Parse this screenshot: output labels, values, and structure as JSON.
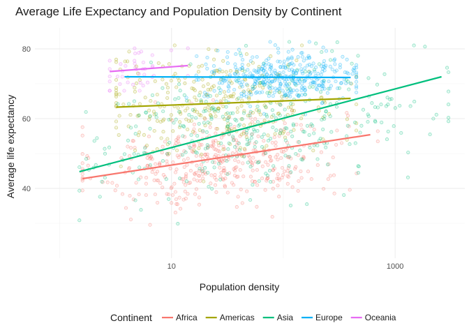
{
  "chart_data": {
    "type": "scatter",
    "title": "Average Life Expectancy and Population Density by Continent",
    "xlabel": "Population density",
    "ylabel": "Average life expectancy",
    "x_scale": "log10",
    "xlim": [
      0.6,
      4200
    ],
    "ylim": [
      20,
      86
    ],
    "x_ticks": [
      10,
      1000
    ],
    "x_tick_labels": [
      "10",
      "1000"
    ],
    "y_ticks": [
      40,
      60,
      80
    ],
    "y_tick_labels": [
      "40",
      "60",
      "80"
    ],
    "grid": true,
    "legend": {
      "title": "Continent",
      "position": "bottom"
    },
    "series": [
      {
        "name": "Africa",
        "color": "#F8766D",
        "fit": {
          "x": [
            1.6,
            600
          ],
          "y": [
            42.8,
            55.4
          ]
        },
        "x_range": [
          1.6,
          700
        ],
        "y_range": [
          24,
          67
        ],
        "cloud_center": {
          "x": 28,
          "y": 47
        },
        "cloud_spread": {
          "log_x": 0.55,
          "y": 6.5
        },
        "point_count": 420
      },
      {
        "name": "Americas",
        "color": "#A3A500",
        "fit": {
          "x": [
            3.2,
            400
          ],
          "y": [
            63.3,
            65.8
          ]
        },
        "x_range": [
          3.2,
          450
        ],
        "y_range": [
          42,
          81
        ],
        "cloud_center": {
          "x": 25,
          "y": 64
        },
        "cloud_spread": {
          "log_x": 0.55,
          "y": 7
        },
        "point_count": 300
      },
      {
        "name": "Asia",
        "color": "#00BF7D",
        "fit": {
          "x": [
            1.5,
            2600
          ],
          "y": [
            44.8,
            72.0
          ]
        },
        "x_range": [
          1.5,
          3000
        ],
        "y_range": [
          28,
          82
        ],
        "cloud_center": {
          "x": 60,
          "y": 58
        },
        "cloud_spread": {
          "log_x": 0.75,
          "y": 9
        },
        "point_count": 360
      },
      {
        "name": "Europe",
        "color": "#00B0F6",
        "fit": {
          "x": [
            3.8,
            400
          ],
          "y": [
            72.0,
            71.8
          ]
        },
        "x_range": [
          10,
          450
        ],
        "y_range": [
          60,
          82
        ],
        "cloud_center": {
          "x": 100,
          "y": 72
        },
        "cloud_spread": {
          "log_x": 0.35,
          "y": 3.5
        },
        "point_count": 360
      },
      {
        "name": "Oceania",
        "color": "#E76BF3",
        "fit": {
          "x": [
            2.8,
            14
          ],
          "y": [
            73.5,
            75.2
          ]
        },
        "x_range": [
          2.8,
          14
        ],
        "y_range": [
          68,
          82
        ],
        "cloud_center": {
          "x": 5,
          "y": 75
        },
        "cloud_spread": {
          "log_x": 0.2,
          "y": 3.5
        },
        "point_count": 40
      }
    ]
  }
}
